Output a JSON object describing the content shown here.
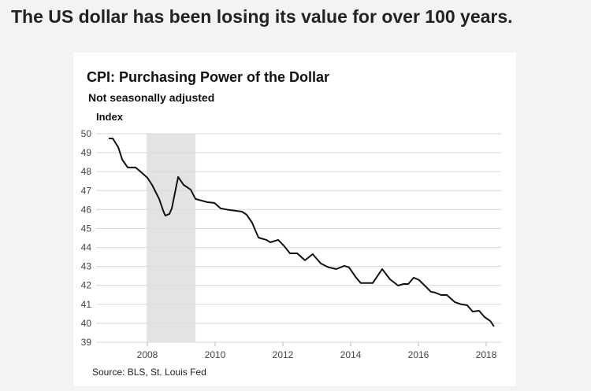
{
  "headline": "The US dollar has been losing its value for over 100 years.",
  "chart_data": {
    "type": "line",
    "title": "CPI: Purchasing Power of the Dollar",
    "subtitle": "Not seasonally adjusted",
    "ylabel": "Index",
    "xlabel": "",
    "source": "Source: BLS, St. Louis Fed",
    "xlim": [
      2006.84,
      2018.4
    ],
    "ylim": [
      39,
      50
    ],
    "yticks": [
      "39",
      "40",
      "41",
      "42",
      "43",
      "44",
      "45",
      "46",
      "47",
      "48",
      "49",
      "50"
    ],
    "xticks": [
      "2008",
      "2010",
      "2012",
      "2014",
      "2016",
      "2018"
    ],
    "grid": true,
    "recession_shading": [
      [
        2007.98,
        2009.42
      ]
    ],
    "colors": {
      "line": "#111111",
      "shading": "#e3e3e3",
      "grid": "#dddddd"
    },
    "series": [
      {
        "x": [
          2006.86,
          2006.98,
          2007.14,
          2007.26,
          2007.42,
          2007.65,
          2007.79,
          2008.0,
          2008.14,
          2008.35,
          2008.47,
          2008.53,
          2008.65,
          2008.72,
          2008.91,
          2009.07,
          2009.28,
          2009.42,
          2009.77,
          2009.98,
          2010.16,
          2010.4,
          2010.79,
          2010.93,
          2011.09,
          2011.28,
          2011.51,
          2011.63,
          2011.86,
          2012.02,
          2012.21,
          2012.42,
          2012.65,
          2012.88,
          2013.12,
          2013.35,
          2013.58,
          2013.81,
          2013.95,
          2014.16,
          2014.3,
          2014.65,
          2014.93,
          2015.16,
          2015.4,
          2015.56,
          2015.7,
          2015.86,
          2016.02,
          2016.37,
          2016.49,
          2016.67,
          2016.84,
          2017.07,
          2017.26,
          2017.44,
          2017.6,
          2017.79,
          2017.95,
          2018.12,
          2018.23
        ],
        "y": [
          49.75,
          49.75,
          49.29,
          48.63,
          48.22,
          48.22,
          48.01,
          47.68,
          47.3,
          46.56,
          45.93,
          45.68,
          45.77,
          46.06,
          47.72,
          47.3,
          47.05,
          46.56,
          46.39,
          46.35,
          46.06,
          45.98,
          45.89,
          45.73,
          45.31,
          44.52,
          44.4,
          44.27,
          44.4,
          44.11,
          43.69,
          43.69,
          43.32,
          43.65,
          43.15,
          42.95,
          42.86,
          43.03,
          42.95,
          42.41,
          42.12,
          42.12,
          42.86,
          42.32,
          41.99,
          42.07,
          42.07,
          42.41,
          42.28,
          41.66,
          41.62,
          41.49,
          41.49,
          41.12,
          41.0,
          40.95,
          40.62,
          40.66,
          40.33,
          40.12,
          39.83
        ]
      }
    ]
  }
}
